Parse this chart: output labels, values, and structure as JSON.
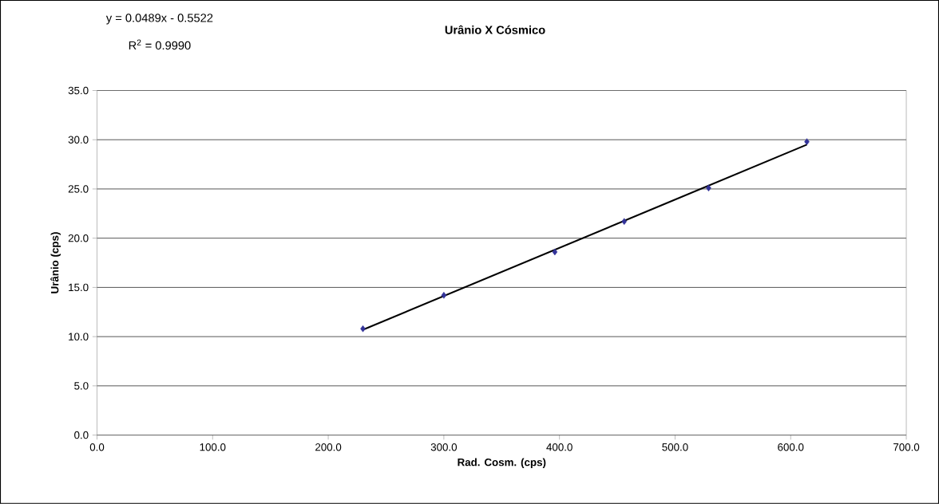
{
  "chart_data": {
    "type": "scatter",
    "title": "Urânio X Cósmico",
    "xlabel": "Rad. Cosm. (cps)",
    "ylabel": "Urânio (cps)",
    "annotations": [
      "y = 0.0489x - 0.5522",
      "R$^{2}$ = 0.9990"
    ],
    "series": [
      {
        "color": "#333399",
        "marker": "diamond",
        "x": [
          230,
          300,
          396,
          456,
          529,
          614
        ],
        "values": [
          10.8,
          14.2,
          18.6,
          21.7,
          25.1,
          29.8
        ]
      },
      {
        "type": "line",
        "color": "#000000",
        "marker": "none",
        "line_style": "solid",
        "x": [
          230,
          614
        ],
        "values": [
          10.7,
          29.5
        ]
      }
    ],
    "xlim": [
      0,
      700
    ],
    "ylim": [
      0,
      35
    ],
    "xticks": [
      {
        "value": 0,
        "label": "0.0"
      },
      {
        "value": 100,
        "label": "100.0"
      },
      {
        "value": 200,
        "label": "200.0"
      },
      {
        "value": 300,
        "label": "300.0"
      },
      {
        "value": 400,
        "label": "400.0"
      },
      {
        "value": 500,
        "label": "500.0"
      },
      {
        "value": 600,
        "label": "600.0"
      },
      {
        "value": 700,
        "label": "700.0"
      }
    ],
    "yticks": [
      {
        "value": 0,
        "label": "0.0"
      },
      {
        "value": 5,
        "label": "5.0"
      },
      {
        "value": 10,
        "label": "10.0"
      },
      {
        "value": 15,
        "label": "15.0"
      },
      {
        "value": 20,
        "label": "20.0"
      },
      {
        "value": 25,
        "label": "25.0"
      },
      {
        "value": 30,
        "label": "30.0"
      },
      {
        "value": 35,
        "label": "35.0"
      }
    ],
    "grid": "y"
  }
}
